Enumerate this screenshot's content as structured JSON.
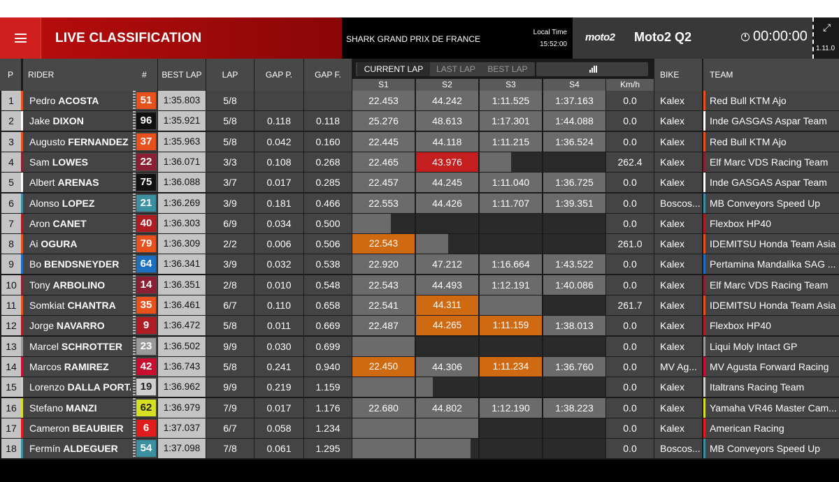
{
  "header": {
    "title": "LIVE CLASSIFICATION",
    "event": "SHARK GRAND PRIX DE FRANCE",
    "local_time_label": "Local Time",
    "local_time": "15:52:00",
    "logo_text": "moto2",
    "category": "Moto2 Q2",
    "timer": "00:00:00",
    "version": "1.11.0",
    "icons": {
      "menu": "hamburger-menu-icon",
      "clock": "clock-icon",
      "expand": "expand-arrows-icon"
    }
  },
  "columns": {
    "pos": "P",
    "rider": "RIDER",
    "num": "#",
    "best_lap": "BEST LAP",
    "lap": "LAP",
    "gap_prev": "GAP P.",
    "gap_first": "GAP F.",
    "bike": "BIKE",
    "team": "TEAM",
    "sectors": [
      "S1",
      "S2",
      "S3",
      "S4"
    ],
    "speed": "Km/h"
  },
  "lap_tabs": [
    "CURRENT LAP",
    "LAST LAP",
    "BEST LAP"
  ],
  "active_lap_tab": 0,
  "colors": {
    "sector_personal_best": "#d06a12",
    "sector_overall_best": "#c41e1e",
    "sector_completed": "#6b6b6b",
    "ktm": "#e8501c",
    "gasgas": "#ffffff",
    "honda": "#e8501c",
    "marc_vds": "#8c1f33",
    "boscoscuro": "#3a8fa0",
    "pertamina": "#1e6fc0",
    "flexbox": "#b01c24",
    "intact": "#9a9a9a",
    "mv_agusta": "#c8102e",
    "italtrans": "#cfcfcf",
    "vr46": "#d7df23",
    "american": "#e01c1c"
  },
  "rows": [
    {
      "pos": "1",
      "first": "Pedro",
      "last": "ACOSTA",
      "num": "51",
      "num_color": "#e8501c",
      "stripe": "#e8501c",
      "best": "1:35.803",
      "lap": "5/8",
      "gap_p": "",
      "gap_f": "",
      "s1": "22.453",
      "s1s": "filled",
      "s2": "44.242",
      "s2s": "filled",
      "s3": "1:11.525",
      "s3s": "filled",
      "s4": "1:37.163",
      "s4s": "filled",
      "kmh": "0.0",
      "bike": "Kalex",
      "team": "Red Bull KTM Ajo",
      "team_color": "#e8501c"
    },
    {
      "pos": "2",
      "first": "Jake",
      "last": "DIXON",
      "num": "96",
      "num_color": "#111111",
      "stripe": "#ffffff",
      "best": "1:35.921",
      "lap": "5/8",
      "gap_p": "0.118",
      "gap_f": "0.118",
      "s1": "25.276",
      "s1s": "filled",
      "s2": "48.613",
      "s2s": "filled",
      "s3": "1:17.301",
      "s3s": "filled",
      "s4": "1:44.088",
      "s4s": "filled",
      "kmh": "0.0",
      "bike": "Kalex",
      "team": "Inde GASGAS Aspar Team",
      "team_color": "#ffffff"
    },
    {
      "pos": "3",
      "first": "Augusto",
      "last": "FERNANDEZ",
      "num": "37",
      "num_color": "#e8501c",
      "stripe": "#e8501c",
      "best": "1:35.963",
      "lap": "5/8",
      "gap_p": "0.042",
      "gap_f": "0.160",
      "s1": "22.445",
      "s1s": "filled",
      "s2": "44.118",
      "s2s": "filled",
      "s3": "1:11.215",
      "s3s": "filled",
      "s4": "1:36.524",
      "s4s": "filled",
      "kmh": "0.0",
      "bike": "Kalex",
      "team": "Red Bull KTM Ajo",
      "team_color": "#e8501c"
    },
    {
      "pos": "4",
      "first": "Sam",
      "last": "LOWES",
      "num": "22",
      "num_color": "#8c1f33",
      "stripe": "#8c1f33",
      "best": "1:36.071",
      "lap": "3/3",
      "gap_p": "0.108",
      "gap_f": "0.268",
      "s1": "22.465",
      "s1s": "filled",
      "s2": "43.976",
      "s2s": "record",
      "s3": "",
      "s3s": "partial",
      "s3p": 0.5,
      "s4": "",
      "s4s": "empty",
      "kmh": "262.4",
      "bike": "Kalex",
      "team": "Elf Marc VDS Racing Team",
      "team_color": "#8c1f33"
    },
    {
      "pos": "5",
      "first": "Albert",
      "last": "ARENAS",
      "num": "75",
      "num_color": "#111111",
      "stripe": "#ffffff",
      "best": "1:36.088",
      "lap": "3/7",
      "gap_p": "0.017",
      "gap_f": "0.285",
      "s1": "22.457",
      "s1s": "filled",
      "s2": "44.245",
      "s2s": "filled",
      "s3": "1:11.040",
      "s3s": "filled",
      "s4": "1:36.725",
      "s4s": "filled",
      "kmh": "0.0",
      "bike": "Kalex",
      "team": "Inde GASGAS Aspar Team",
      "team_color": "#ffffff"
    },
    {
      "pos": "6",
      "first": "Alonso",
      "last": "LOPEZ",
      "num": "21",
      "num_color": "#3a8fa0",
      "stripe": "#3a8fa0",
      "best": "1:36.269",
      "lap": "3/9",
      "gap_p": "0.181",
      "gap_f": "0.466",
      "s1": "22.553",
      "s1s": "filled",
      "s2": "44.426",
      "s2s": "filled",
      "s3": "1:11.707",
      "s3s": "filled",
      "s4": "1:39.351",
      "s4s": "filled",
      "kmh": "0.0",
      "bike": "Boscos...",
      "team": "MB Conveyors Speed Up",
      "team_color": "#3a8fa0"
    },
    {
      "pos": "7",
      "first": "Aron",
      "last": "CANET",
      "num": "40",
      "num_color": "#b01c24",
      "stripe": "#b01c24",
      "best": "1:36.303",
      "lap": "6/9",
      "gap_p": "0.034",
      "gap_f": "0.500",
      "s1": "",
      "s1s": "partial",
      "s1p": 0.62,
      "s2": "",
      "s2s": "empty",
      "s3": "",
      "s3s": "empty",
      "s4": "",
      "s4s": "empty",
      "kmh": "0.0",
      "bike": "Kalex",
      "team": "Flexbox HP40",
      "team_color": "#b01c24"
    },
    {
      "pos": "8",
      "first": "Ai",
      "last": "OGURA",
      "num": "79",
      "num_color": "#e8501c",
      "stripe": "#e8501c",
      "best": "1:36.309",
      "lap": "2/2",
      "gap_p": "0.006",
      "gap_f": "0.506",
      "s1": "22.543",
      "s1s": "best",
      "s2": "",
      "s2s": "partial",
      "s2p": 0.52,
      "s3": "",
      "s3s": "empty",
      "s4": "",
      "s4s": "empty",
      "kmh": "261.0",
      "bike": "Kalex",
      "team": "IDEMITSU Honda Team Asia",
      "team_color": "#e8501c"
    },
    {
      "pos": "9",
      "first": "Bo",
      "last": "BENDSNEYDER",
      "num": "64",
      "num_color": "#1e6fc0",
      "stripe": "#1e6fc0",
      "best": "1:36.341",
      "lap": "3/9",
      "gap_p": "0.032",
      "gap_f": "0.538",
      "s1": "22.920",
      "s1s": "filled",
      "s2": "47.212",
      "s2s": "filled",
      "s3": "1:16.664",
      "s3s": "filled",
      "s4": "1:43.522",
      "s4s": "filled",
      "kmh": "0.0",
      "bike": "Kalex",
      "team": "Pertamina Mandalika SAG ...",
      "team_color": "#1e6fc0"
    },
    {
      "pos": "10",
      "first": "Tony",
      "last": "ARBOLINO",
      "num": "14",
      "num_color": "#8c1f33",
      "stripe": "#8c1f33",
      "best": "1:36.351",
      "lap": "2/8",
      "gap_p": "0.010",
      "gap_f": "0.548",
      "s1": "22.543",
      "s1s": "filled",
      "s2": "44.493",
      "s2s": "filled",
      "s3": "1:12.191",
      "s3s": "filled",
      "s4": "1:40.086",
      "s4s": "filled",
      "kmh": "0.0",
      "bike": "Kalex",
      "team": "Elf Marc VDS Racing Team",
      "team_color": "#8c1f33"
    },
    {
      "pos": "11",
      "first": "Somkiat",
      "last": "CHANTRA",
      "num": "35",
      "num_color": "#e8501c",
      "stripe": "#e8501c",
      "best": "1:36.461",
      "lap": "6/7",
      "gap_p": "0.110",
      "gap_f": "0.658",
      "s1": "22.541",
      "s1s": "filled",
      "s2": "44.311",
      "s2s": "best",
      "s3": "",
      "s3s": "partial",
      "s3p": 1.0,
      "s4": "",
      "s4s": "empty",
      "kmh": "261.7",
      "bike": "Kalex",
      "team": "IDEMITSU Honda Team Asia",
      "team_color": "#e8501c"
    },
    {
      "pos": "12",
      "first": "Jorge",
      "last": "NAVARRO",
      "num": "9",
      "num_color": "#b01c24",
      "stripe": "#b01c24",
      "best": "1:36.472",
      "lap": "5/8",
      "gap_p": "0.011",
      "gap_f": "0.669",
      "s1": "22.487",
      "s1s": "filled",
      "s2": "44.265",
      "s2s": "best",
      "s3": "1:11.159",
      "s3s": "best",
      "s4": "1:38.013",
      "s4s": "filled",
      "kmh": "0.0",
      "bike": "Kalex",
      "team": "Flexbox HP40",
      "team_color": "#b01c24"
    },
    {
      "pos": "13",
      "first": "Marcel",
      "last": "SCHROTTER",
      "num": "23",
      "num_color": "#9a9a9a",
      "stripe": "#9a9a9a",
      "best": "1:36.502",
      "lap": "9/9",
      "gap_p": "0.030",
      "gap_f": "0.699",
      "s1": "",
      "s1s": "partial",
      "s1p": 1.0,
      "s2": "",
      "s2s": "empty",
      "s3": "",
      "s3s": "empty",
      "s4": "",
      "s4s": "empty",
      "kmh": "0.0",
      "bike": "Kalex",
      "team": "Liqui Moly Intact GP",
      "team_color": "#9a9a9a"
    },
    {
      "pos": "14",
      "first": "Marcos",
      "last": "RAMIREZ",
      "num": "42",
      "num_color": "#c8102e",
      "stripe": "#c8102e",
      "best": "1:36.743",
      "lap": "5/8",
      "gap_p": "0.241",
      "gap_f": "0.940",
      "s1": "22.450",
      "s1s": "best",
      "s2": "44.306",
      "s2s": "filled",
      "s3": "1:11.234",
      "s3s": "best",
      "s4": "1:36.760",
      "s4s": "filled",
      "kmh": "0.0",
      "bike": "MV Ag...",
      "team": "MV Agusta Forward Racing",
      "team_color": "#c8102e"
    },
    {
      "pos": "15",
      "first": "Lorenzo",
      "last": "DALLA PORTA",
      "num": "19",
      "num_color": "#cfcfcf",
      "stripe": "#cfcfcf",
      "best": "1:36.962",
      "lap": "9/9",
      "gap_p": "0.219",
      "gap_f": "1.159",
      "s1": "",
      "s1s": "partial",
      "s1p": 1.0,
      "s2": "",
      "s2s": "partial",
      "s2p": 0.27,
      "s3": "",
      "s3s": "empty",
      "s4": "",
      "s4s": "empty",
      "kmh": "0.0",
      "bike": "Kalex",
      "team": "Italtrans Racing Team",
      "team_color": "#cfcfcf"
    },
    {
      "pos": "16",
      "first": "Stefano",
      "last": "MANZI",
      "num": "62",
      "num_color": "#d7df23",
      "stripe": "#d7df23",
      "best": "1:36.979",
      "lap": "7/9",
      "gap_p": "0.017",
      "gap_f": "1.176",
      "s1": "22.680",
      "s1s": "filled",
      "s2": "44.802",
      "s2s": "filled",
      "s3": "1:12.190",
      "s3s": "filled",
      "s4": "1:38.223",
      "s4s": "filled",
      "kmh": "0.0",
      "bike": "Kalex",
      "team": "Yamaha VR46 Master Cam...",
      "team_color": "#d7df23"
    },
    {
      "pos": "17",
      "first": "Cameron",
      "last": "BEAUBIER",
      "num": "6",
      "num_color": "#e01c1c",
      "stripe": "#e01c1c",
      "best": "1:37.037",
      "lap": "6/7",
      "gap_p": "0.058",
      "gap_f": "1.234",
      "s1": "",
      "s1s": "partial",
      "s1p": 1.0,
      "s2": "",
      "s2s": "partial",
      "s2p": 1.0,
      "s3": "",
      "s3s": "empty",
      "s4": "",
      "s4s": "empty",
      "kmh": "0.0",
      "bike": "Kalex",
      "team": "American Racing",
      "team_color": "#e01c1c"
    },
    {
      "pos": "18",
      "first": "Fermín",
      "last": "ALDEGUER",
      "num": "54",
      "num_color": "#3a8fa0",
      "stripe": "#3a8fa0",
      "best": "1:37.098",
      "lap": "7/8",
      "gap_p": "0.061",
      "gap_f": "1.295",
      "s1": "",
      "s1s": "partial",
      "s1p": 1.0,
      "s2": "",
      "s2s": "partial",
      "s2p": 0.88,
      "s3": "",
      "s3s": "empty",
      "s4": "",
      "s4s": "empty",
      "kmh": "0.0",
      "bike": "Boscos...",
      "team": "MB Conveyors Speed Up",
      "team_color": "#3a8fa0"
    }
  ]
}
